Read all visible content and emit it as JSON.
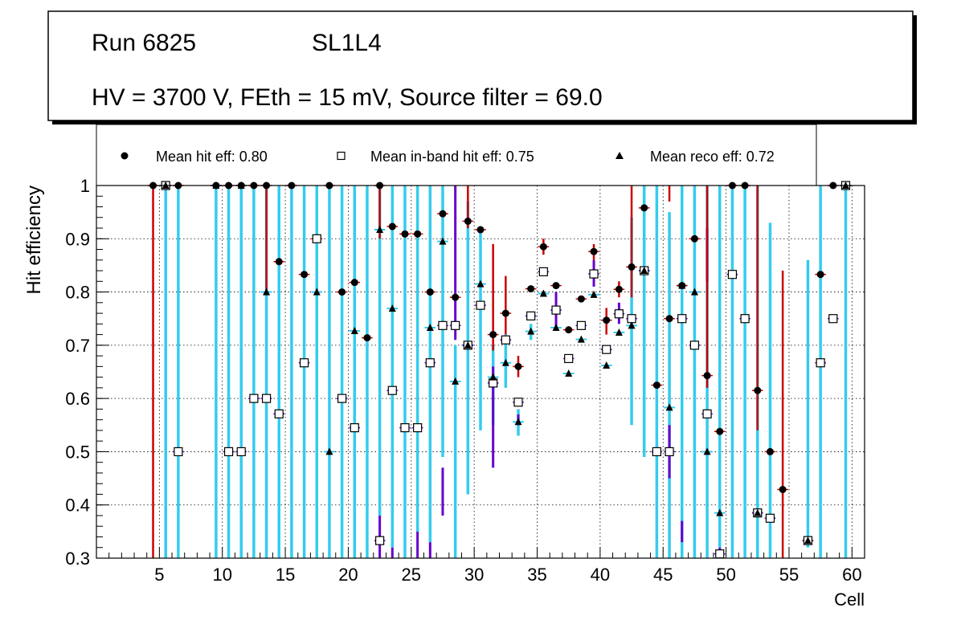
{
  "title_box": {
    "run_label": "Run 6825",
    "layer_label": "SL1L4",
    "conditions": "HV = 3700 V, FEth = 15 mV, Source filter = 69.0"
  },
  "legend": {
    "hit": "Mean hit  eff: 0.80",
    "inband": "Mean in-band hit eff: 0.75",
    "reco": "Mean reco eff: 0.72"
  },
  "colors": {
    "hit_err": "#cc0000",
    "inband_err": "#6600cc",
    "reco_err": "#33ccee",
    "marker": "#000000"
  },
  "chart_data": {
    "type": "scatter",
    "xlabel": "Cell",
    "ylabel": "Hit efficiency",
    "xlim": [
      0,
      61
    ],
    "ylim": [
      0.3,
      1.0
    ],
    "xticks": [
      5,
      10,
      15,
      20,
      25,
      30,
      35,
      40,
      45,
      50,
      55,
      60
    ],
    "yticks": [
      0.3,
      0.4,
      0.5,
      0.6,
      0.7,
      0.8,
      0.9,
      1.0
    ],
    "ytick_labels": [
      "0.3",
      "0.4",
      "0.5",
      "0.6",
      "0.7",
      "0.8",
      "0.9",
      "1"
    ],
    "grid": true,
    "series": [
      {
        "name": "Mean hit eff",
        "marker": "circle",
        "points": [
          [
            4.5,
            1.0
          ],
          [
            5.5,
            1.0
          ],
          [
            6.5,
            1.0
          ],
          [
            9.5,
            1.0
          ],
          [
            10.5,
            1.0
          ],
          [
            11.5,
            1.0
          ],
          [
            12.5,
            1.0
          ],
          [
            13.5,
            1.0
          ],
          [
            14.5,
            0.857
          ],
          [
            15.5,
            1.0
          ],
          [
            16.5,
            0.833
          ],
          [
            17.5,
            0.9
          ],
          [
            18.5,
            1.0
          ],
          [
            19.5,
            0.8
          ],
          [
            20.5,
            0.818
          ],
          [
            21.5,
            0.714
          ],
          [
            22.5,
            1.0
          ],
          [
            23.5,
            0.923
          ],
          [
            24.5,
            0.909
          ],
          [
            25.5,
            0.909
          ],
          [
            26.5,
            0.8
          ],
          [
            27.5,
            0.947
          ],
          [
            28.5,
            0.79
          ],
          [
            29.5,
            0.933
          ],
          [
            30.5,
            0.917
          ],
          [
            31.5,
            0.72
          ],
          [
            32.5,
            0.76
          ],
          [
            33.5,
            0.66
          ],
          [
            34.5,
            0.806
          ],
          [
            35.5,
            0.885
          ],
          [
            36.5,
            0.812
          ],
          [
            37.5,
            0.729
          ],
          [
            38.5,
            0.787
          ],
          [
            39.5,
            0.876
          ],
          [
            40.5,
            0.747
          ],
          [
            41.5,
            0.805
          ],
          [
            42.5,
            0.847
          ],
          [
            43.5,
            0.958
          ],
          [
            44.5,
            0.625
          ],
          [
            45.5,
            0.75
          ],
          [
            46.5,
            0.812
          ],
          [
            47.5,
            0.9
          ],
          [
            48.5,
            0.643
          ],
          [
            49.5,
            0.538
          ],
          [
            50.5,
            1.0
          ],
          [
            51.5,
            1.0
          ],
          [
            52.5,
            0.615
          ],
          [
            53.5,
            0.5
          ],
          [
            54.5,
            0.429
          ],
          [
            56.5,
            0.333
          ],
          [
            57.5,
            0.833
          ],
          [
            58.5,
            1.0
          ],
          [
            59.5,
            1.0
          ]
        ]
      },
      {
        "name": "Mean in-band hit eff",
        "marker": "open-square",
        "points": [
          [
            5.5,
            1.0
          ],
          [
            6.5,
            0.5
          ],
          [
            10.5,
            0.5
          ],
          [
            11.5,
            0.5
          ],
          [
            12.5,
            0.6
          ],
          [
            13.5,
            0.6
          ],
          [
            14.5,
            0.571
          ],
          [
            16.5,
            0.667
          ],
          [
            17.5,
            0.9
          ],
          [
            19.5,
            0.6
          ],
          [
            20.5,
            0.545
          ],
          [
            22.5,
            0.333
          ],
          [
            23.5,
            0.615
          ],
          [
            24.5,
            0.545
          ],
          [
            25.5,
            0.545
          ],
          [
            26.5,
            0.667
          ],
          [
            27.5,
            0.737
          ],
          [
            28.5,
            0.737
          ],
          [
            29.5,
            0.7
          ],
          [
            30.5,
            0.775
          ],
          [
            31.5,
            0.629
          ],
          [
            32.5,
            0.71
          ],
          [
            33.5,
            0.593
          ],
          [
            34.5,
            0.755
          ],
          [
            35.5,
            0.838
          ],
          [
            36.5,
            0.766
          ],
          [
            37.5,
            0.675
          ],
          [
            38.5,
            0.737
          ],
          [
            39.5,
            0.834
          ],
          [
            40.5,
            0.692
          ],
          [
            41.5,
            0.759
          ],
          [
            42.5,
            0.75
          ],
          [
            43.5,
            0.84
          ],
          [
            44.5,
            0.5
          ],
          [
            45.5,
            0.5
          ],
          [
            46.5,
            0.75
          ],
          [
            47.5,
            0.7
          ],
          [
            48.5,
            0.571
          ],
          [
            49.5,
            0.308
          ],
          [
            50.5,
            0.833
          ],
          [
            51.5,
            0.75
          ],
          [
            52.5,
            0.385
          ],
          [
            53.5,
            0.375
          ],
          [
            56.5,
            0.333
          ],
          [
            57.5,
            0.667
          ],
          [
            58.5,
            0.75
          ],
          [
            59.5,
            1.0
          ]
        ]
      },
      {
        "name": "Mean reco eff",
        "marker": "triangle",
        "points": [
          [
            5.5,
            1.0
          ],
          [
            9.5,
            1.0
          ],
          [
            11.5,
            1.0
          ],
          [
            13.5,
            0.8
          ],
          [
            17.5,
            0.8
          ],
          [
            18.5,
            0.5
          ],
          [
            20.5,
            0.727
          ],
          [
            22.5,
            0.917
          ],
          [
            23.5,
            0.769
          ],
          [
            26.5,
            0.733
          ],
          [
            27.5,
            0.895
          ],
          [
            28.5,
            0.632
          ],
          [
            29.5,
            0.7
          ],
          [
            30.5,
            0.815
          ],
          [
            31.5,
            0.64
          ],
          [
            32.5,
            0.667
          ],
          [
            33.5,
            0.556
          ],
          [
            34.5,
            0.726
          ],
          [
            35.5,
            0.797
          ],
          [
            36.5,
            0.733
          ],
          [
            37.5,
            0.647
          ],
          [
            38.5,
            0.711
          ],
          [
            39.5,
            0.795
          ],
          [
            40.5,
            0.662
          ],
          [
            41.5,
            0.724
          ],
          [
            42.5,
            0.737
          ],
          [
            43.5,
            0.84
          ],
          [
            45.5,
            0.583
          ],
          [
            46.5,
            0.812
          ],
          [
            47.5,
            0.8
          ],
          [
            48.5,
            0.5
          ],
          [
            49.5,
            0.385
          ],
          [
            52.5,
            0.385
          ],
          [
            56.5,
            0.333
          ],
          [
            59.5,
            1.0
          ]
        ]
      }
    ],
    "error_bars": {
      "hit": [
        [
          4.5,
          0.3,
          1.0
        ],
        [
          13.5,
          0.8,
          1.0
        ],
        [
          22.5,
          0.9,
          1.0
        ],
        [
          29.5,
          0.92,
          1.0
        ],
        [
          31.5,
          0.69,
          0.89
        ],
        [
          32.5,
          0.72,
          0.83
        ],
        [
          33.5,
          0.64,
          0.68
        ],
        [
          35.5,
          0.87,
          0.9
        ],
        [
          39.5,
          0.86,
          0.89
        ],
        [
          40.5,
          0.72,
          0.77
        ],
        [
          41.5,
          0.79,
          0.82
        ],
        [
          42.5,
          0.79,
          1.0
        ],
        [
          45.5,
          0.97,
          1.0
        ],
        [
          48.5,
          0.62,
          1.0
        ],
        [
          52.5,
          0.54,
          1.0
        ],
        [
          54.5,
          0.3,
          0.84
        ]
      ],
      "inband": [
        [
          22.5,
          0.3,
          0.38
        ],
        [
          23.5,
          0.3,
          0.32
        ],
        [
          25.5,
          0.3,
          0.35
        ],
        [
          26.5,
          0.3,
          0.33
        ],
        [
          27.5,
          0.38,
          0.47
        ],
        [
          28.5,
          0.71,
          1.0
        ],
        [
          31.5,
          0.47,
          0.66
        ],
        [
          33.5,
          0.55,
          0.57
        ],
        [
          36.5,
          0.73,
          0.8
        ],
        [
          39.5,
          0.81,
          0.86
        ],
        [
          41.5,
          0.74,
          0.78
        ],
        [
          45.5,
          0.45,
          0.55
        ],
        [
          46.5,
          0.33,
          0.37
        ],
        [
          48.5,
          0.82,
          0.92
        ],
        [
          49.5,
          0.3,
          0.32
        ]
      ],
      "reco": [
        [
          5.5,
          0.3,
          1.0
        ],
        [
          6.5,
          0.3,
          1.0
        ],
        [
          9.5,
          0.3,
          1.0
        ],
        [
          10.5,
          0.3,
          1.0
        ],
        [
          11.5,
          0.3,
          1.0
        ],
        [
          12.5,
          0.3,
          1.0
        ],
        [
          13.5,
          0.3,
          1.0
        ],
        [
          14.5,
          0.3,
          1.0
        ],
        [
          15.5,
          0.3,
          1.0
        ],
        [
          16.5,
          0.3,
          1.0
        ],
        [
          17.5,
          0.3,
          1.0
        ],
        [
          18.5,
          0.3,
          1.0
        ],
        [
          19.5,
          0.3,
          1.0
        ],
        [
          20.5,
          0.3,
          1.0
        ],
        [
          21.5,
          0.3,
          1.0
        ],
        [
          22.5,
          0.38,
          1.0
        ],
        [
          23.5,
          0.32,
          1.0
        ],
        [
          24.5,
          0.3,
          1.0
        ],
        [
          25.5,
          0.35,
          1.0
        ],
        [
          26.5,
          0.33,
          1.0
        ],
        [
          27.5,
          0.49,
          1.0
        ],
        [
          28.5,
          0.3,
          0.7
        ],
        [
          29.5,
          0.42,
          0.97
        ],
        [
          30.5,
          0.54,
          0.92
        ],
        [
          31.5,
          0.55,
          0.7
        ],
        [
          32.5,
          0.62,
          0.72
        ],
        [
          33.5,
          0.53,
          0.58
        ],
        [
          34.5,
          0.71,
          0.74
        ],
        [
          43.5,
          0.49,
          1.0
        ],
        [
          42.5,
          0.55,
          0.94
        ],
        [
          44.5,
          0.3,
          1.0
        ],
        [
          45.5,
          0.3,
          0.95
        ],
        [
          46.5,
          0.3,
          1.0
        ],
        [
          47.5,
          0.3,
          1.0
        ],
        [
          48.5,
          0.3,
          1.0
        ],
        [
          49.5,
          0.32,
          1.0
        ],
        [
          50.5,
          0.3,
          1.0
        ],
        [
          51.5,
          0.3,
          1.0
        ],
        [
          52.5,
          0.3,
          1.0
        ],
        [
          53.5,
          0.3,
          0.93
        ],
        [
          56.5,
          0.32,
          0.86
        ],
        [
          57.5,
          0.3,
          1.0
        ],
        [
          59.5,
          0.3,
          1.0
        ]
      ]
    }
  }
}
